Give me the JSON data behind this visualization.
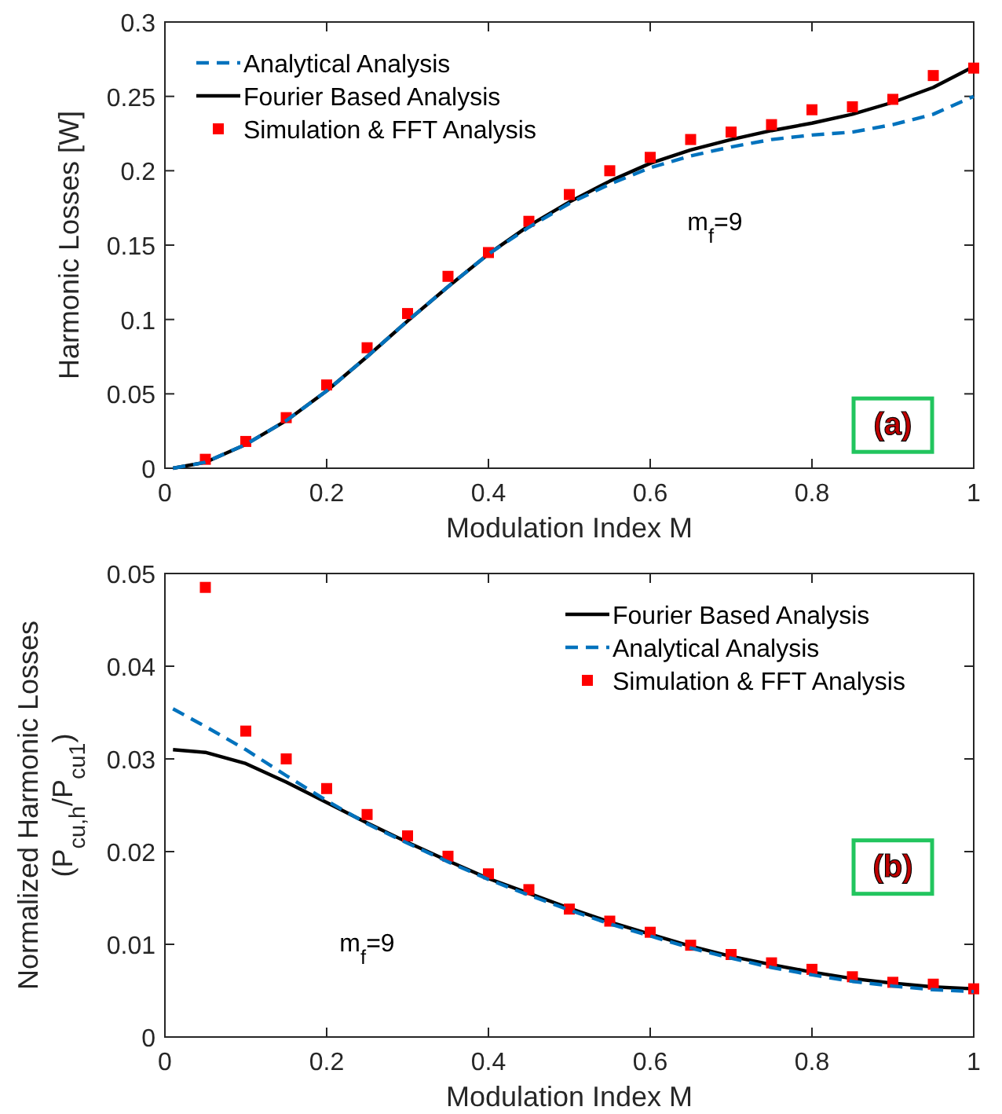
{
  "chart_data": [
    {
      "type": "line",
      "xlabel": "Modulation Index M",
      "ylabel": "Harmonic Losses [W]",
      "xlim": [
        0,
        1
      ],
      "xticks": [
        0,
        0.2,
        0.4,
        0.6,
        0.8,
        1
      ],
      "ylim": [
        0,
        0.3
      ],
      "yticks": [
        0,
        0.05,
        0.1,
        0.15,
        0.2,
        0.25,
        0.3
      ],
      "grid": false,
      "legend": "top left",
      "annotations": [
        "m$_{f}$=9",
        "(a)"
      ],
      "series": [
        {
          "name": "Analytical Analysis",
          "line_style": "dashed",
          "marker": "none",
          "color": "#0072bd",
          "x": [
            0.01,
            0.05,
            0.1,
            0.15,
            0.2,
            0.25,
            0.3,
            0.35,
            0.4,
            0.45,
            0.5,
            0.55,
            0.6,
            0.65,
            0.7,
            0.75,
            0.8,
            0.85,
            0.9,
            0.95,
            1
          ],
          "values": [
            0,
            0.004,
            0.016,
            0.032,
            0.052,
            0.075,
            0.099,
            0.122,
            0.144,
            0.162,
            0.178,
            0.191,
            0.202,
            0.21,
            0.216,
            0.221,
            0.224,
            0.226,
            0.231,
            0.238,
            0.25
          ]
        },
        {
          "name": "Fourier Based Analysis",
          "line_style": "solid",
          "marker": "none",
          "color": "#000000",
          "x": [
            0.01,
            0.05,
            0.1,
            0.15,
            0.2,
            0.25,
            0.3,
            0.35,
            0.4,
            0.45,
            0.5,
            0.55,
            0.6,
            0.65,
            0.7,
            0.75,
            0.8,
            0.85,
            0.9,
            0.95,
            1
          ],
          "values": [
            0,
            0.004,
            0.016,
            0.032,
            0.052,
            0.075,
            0.099,
            0.122,
            0.144,
            0.163,
            0.179,
            0.193,
            0.205,
            0.214,
            0.221,
            0.227,
            0.232,
            0.238,
            0.246,
            0.256,
            0.27
          ]
        },
        {
          "name": "Simulation & FFT Analysis",
          "type": "scatter",
          "marker": "square",
          "color": "#ff0000",
          "x": [
            0.05,
            0.1,
            0.15,
            0.2,
            0.25,
            0.3,
            0.35,
            0.4,
            0.45,
            0.5,
            0.55,
            0.6,
            0.65,
            0.7,
            0.75,
            0.8,
            0.85,
            0.9,
            0.95,
            1
          ],
          "values": [
            0.006,
            0.018,
            0.034,
            0.056,
            0.081,
            0.104,
            0.129,
            0.145,
            0.166,
            0.184,
            0.2,
            0.209,
            0.221,
            0.226,
            0.231,
            0.241,
            0.243,
            0.248,
            0.264,
            0.269
          ]
        }
      ]
    },
    {
      "type": "line",
      "xlabel": "Modulation Index M",
      "ylabel": "Normalized Harmonic Losses\n(P$_{cu,h}$/P$_{cu1}$)",
      "xlim": [
        0,
        1
      ],
      "xticks": [
        0,
        0.2,
        0.4,
        0.6,
        0.8,
        1
      ],
      "ylim": [
        0,
        0.05
      ],
      "yticks": [
        0,
        0.01,
        0.02,
        0.03,
        0.04,
        0.05
      ],
      "grid": false,
      "legend": "top right",
      "annotations": [
        "m$_{f}$=9",
        "(b)"
      ],
      "series": [
        {
          "name": "Fourier Based Analysis",
          "line_style": "solid",
          "marker": "none",
          "color": "#000000",
          "x": [
            0.01,
            0.05,
            0.1,
            0.15,
            0.2,
            0.25,
            0.3,
            0.35,
            0.4,
            0.45,
            0.5,
            0.55,
            0.6,
            0.65,
            0.7,
            0.75,
            0.8,
            0.85,
            0.9,
            0.95,
            1
          ],
          "values": [
            0.031,
            0.0307,
            0.0295,
            0.0275,
            0.0253,
            0.0231,
            0.021,
            0.019,
            0.0171,
            0.0155,
            0.0139,
            0.0124,
            0.0111,
            0.0098,
            0.0087,
            0.0078,
            0.007,
            0.0063,
            0.0058,
            0.0054,
            0.0052
          ]
        },
        {
          "name": "Analytical Analysis",
          "line_style": "dashed",
          "marker": "none",
          "color": "#0072bd",
          "x": [
            0.01,
            0.05,
            0.1,
            0.15,
            0.2,
            0.25,
            0.3,
            0.35,
            0.4,
            0.45,
            0.5,
            0.55,
            0.6,
            0.65,
            0.7,
            0.75,
            0.8,
            0.85,
            0.9,
            0.95,
            1
          ],
          "values": [
            0.0354,
            0.0335,
            0.031,
            0.0282,
            0.0255,
            0.023,
            0.0209,
            0.0189,
            0.017,
            0.0153,
            0.0137,
            0.0122,
            0.0109,
            0.0096,
            0.0085,
            0.0075,
            0.0067,
            0.006,
            0.0055,
            0.0051,
            0.0049
          ]
        },
        {
          "name": "Simulation & FFT Analysis",
          "type": "scatter",
          "marker": "square",
          "color": "#ff0000",
          "x": [
            0.05,
            0.1,
            0.15,
            0.2,
            0.25,
            0.3,
            0.35,
            0.4,
            0.45,
            0.5,
            0.55,
            0.6,
            0.65,
            0.7,
            0.75,
            0.8,
            0.85,
            0.9,
            0.95,
            1
          ],
          "values": [
            0.0485,
            0.033,
            0.03,
            0.0268,
            0.024,
            0.0217,
            0.0195,
            0.0176,
            0.0159,
            0.0138,
            0.0125,
            0.0113,
            0.0099,
            0.0089,
            0.008,
            0.0073,
            0.0065,
            0.0059,
            0.0057,
            0.0052
          ]
        }
      ]
    }
  ]
}
